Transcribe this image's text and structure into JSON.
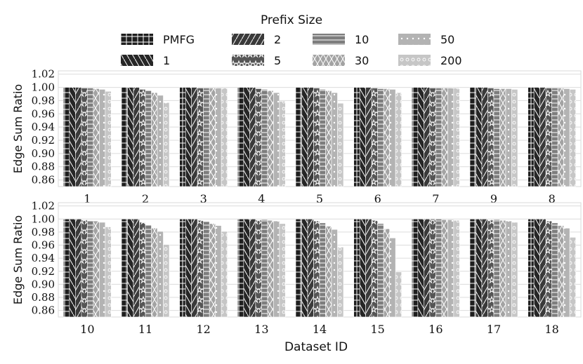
{
  "legend": {
    "title": "Prefix Size",
    "entries": [
      "PMFG",
      "1",
      "2",
      "5",
      "10",
      "30",
      "50",
      "200"
    ]
  },
  "chart_data": [
    {
      "type": "bar",
      "ylabel": "Edge Sum Ratio",
      "xlabel": "",
      "ylim": [
        0.85,
        1.025
      ],
      "yticks": [
        "0.86",
        "0.88",
        "0.90",
        "0.92",
        "0.94",
        "0.96",
        "0.98",
        "1.00",
        "1.02"
      ],
      "categories": [
        "1",
        "2",
        "3",
        "4",
        "5",
        "6",
        "7",
        "9",
        "8"
      ],
      "series": [
        {
          "name": "PMFG",
          "values": [
            1.0,
            1.0,
            1.0,
            1.0,
            1.0,
            1.0,
            1.0,
            1.0,
            1.0
          ]
        },
        {
          "name": "1",
          "values": [
            1.0,
            1.0,
            1.0,
            1.0,
            1.0,
            1.0,
            1.0,
            1.0,
            1.0
          ]
        },
        {
          "name": "2",
          "values": [
            1.0,
            1.0,
            1.0,
            1.0,
            1.0,
            1.0,
            1.0,
            1.0,
            1.0
          ]
        },
        {
          "name": "5",
          "values": [
            0.999,
            0.997,
            0.999,
            0.998,
            0.999,
            0.999,
            0.999,
            0.999,
            0.999
          ]
        },
        {
          "name": "10",
          "values": [
            0.999,
            0.995,
            0.999,
            0.997,
            0.997,
            0.998,
            0.999,
            0.998,
            0.999
          ]
        },
        {
          "name": "30",
          "values": [
            0.998,
            0.992,
            0.999,
            0.995,
            0.995,
            0.998,
            0.999,
            0.998,
            0.999
          ]
        },
        {
          "name": "50",
          "values": [
            0.997,
            0.988,
            0.999,
            0.992,
            0.992,
            0.997,
            0.999,
            0.998,
            0.998
          ]
        },
        {
          "name": "200",
          "values": [
            0.994,
            0.977,
            0.999,
            0.979,
            0.976,
            0.992,
            0.999,
            0.997,
            0.997
          ]
        }
      ]
    },
    {
      "type": "bar",
      "ylabel": "Edge Sum Ratio",
      "xlabel": "Dataset ID",
      "ylim": [
        0.85,
        1.025
      ],
      "yticks": [
        "0.86",
        "0.88",
        "0.90",
        "0.92",
        "0.94",
        "0.96",
        "0.98",
        "1.00",
        "1.02"
      ],
      "categories": [
        "10",
        "11",
        "12",
        "13",
        "14",
        "15",
        "16",
        "17",
        "18"
      ],
      "series": [
        {
          "name": "PMFG",
          "values": [
            1.0,
            1.0,
            1.0,
            1.0,
            1.0,
            1.0,
            1.0,
            1.0,
            1.0
          ]
        },
        {
          "name": "1",
          "values": [
            1.0,
            1.0,
            1.0,
            1.0,
            1.0,
            1.0,
            1.0,
            1.0,
            1.0
          ]
        },
        {
          "name": "2",
          "values": [
            1.0,
            1.0,
            1.0,
            1.0,
            1.0,
            1.0,
            1.0,
            1.0,
            1.0
          ]
        },
        {
          "name": "5",
          "values": [
            0.999,
            0.995,
            0.998,
            0.999,
            0.997,
            0.998,
            1.0,
            0.999,
            0.997
          ]
        },
        {
          "name": "10",
          "values": [
            0.998,
            0.991,
            0.996,
            0.999,
            0.994,
            0.993,
            1.0,
            0.999,
            0.994
          ]
        },
        {
          "name": "30",
          "values": [
            0.997,
            0.986,
            0.993,
            0.998,
            0.989,
            0.985,
            0.999,
            0.998,
            0.99
          ]
        },
        {
          "name": "50",
          "values": [
            0.995,
            0.981,
            0.99,
            0.997,
            0.984,
            0.971,
            0.999,
            0.997,
            0.986
          ]
        },
        {
          "name": "200",
          "values": [
            0.988,
            0.961,
            0.981,
            0.993,
            0.957,
            0.919,
            0.998,
            0.995,
            0.972
          ]
        }
      ]
    }
  ]
}
